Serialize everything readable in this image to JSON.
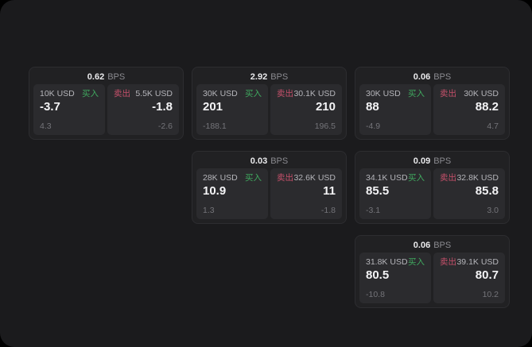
{
  "labels": {
    "bps_unit": "BPS",
    "buy": "买入",
    "sell": "卖出"
  },
  "colors": {
    "page_background": "#1b1b1d",
    "card_background": "#212123",
    "panel_background": "#2b2b2e",
    "buy_green": "#40a95f",
    "sell_red": "#c5506a"
  },
  "cards": [
    {
      "bps": "0.62",
      "buy": {
        "size": "10K USD",
        "price": "-3.7",
        "delta": "4.3"
      },
      "sell": {
        "size": "5.5K USD",
        "price": "-1.8",
        "delta": "-2.6"
      }
    },
    {
      "bps": "2.92",
      "buy": {
        "size": "30K USD",
        "price": "201",
        "delta": "-188.1"
      },
      "sell": {
        "size": "30.1K USD",
        "price": "210",
        "delta": "196.5"
      }
    },
    {
      "bps": "0.06",
      "buy": {
        "size": "30K USD",
        "price": "88",
        "delta": "-4.9"
      },
      "sell": {
        "size": "30K USD",
        "price": "88.2",
        "delta": "4.7"
      }
    },
    {
      "bps": "0.03",
      "buy": {
        "size": "28K USD",
        "price": "10.9",
        "delta": "1.3"
      },
      "sell": {
        "size": "32.6K USD",
        "price": "11",
        "delta": "-1.8"
      }
    },
    {
      "bps": "0.09",
      "buy": {
        "size": "34.1K USD",
        "price": "85.5",
        "delta": "-3.1"
      },
      "sell": {
        "size": "32.8K USD",
        "price": "85.8",
        "delta": "3.0"
      }
    },
    {
      "bps": "0.06",
      "buy": {
        "size": "31.8K USD",
        "price": "80.5",
        "delta": "-10.8"
      },
      "sell": {
        "size": "39.1K USD",
        "price": "80.7",
        "delta": "10.2"
      }
    }
  ]
}
